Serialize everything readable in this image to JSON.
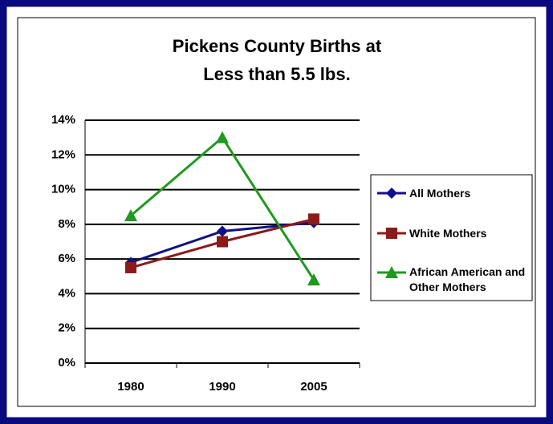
{
  "chart_data": {
    "type": "line",
    "title": "Pickens County Births at Less than 5.5 lbs.",
    "categories": [
      "1980",
      "1990",
      "2005"
    ],
    "series": [
      {
        "name": "All Mothers",
        "color": "#10108a",
        "marker": "diamond",
        "values": [
          5.8,
          7.6,
          8.1
        ]
      },
      {
        "name": "White Mothers",
        "color": "#8b1a1a",
        "marker": "square",
        "values": [
          5.5,
          7.0,
          8.3
        ]
      },
      {
        "name": "African American and Other Mothers",
        "color": "#1e9a1e",
        "marker": "triangle",
        "values": [
          8.5,
          13.0,
          4.8
        ]
      }
    ],
    "ylim": [
      0,
      14
    ],
    "yticks": [
      {
        "value": 0,
        "label": "0%"
      },
      {
        "value": 2,
        "label": "2%"
      },
      {
        "value": 4,
        "label": "4%"
      },
      {
        "value": 6,
        "label": "6%"
      },
      {
        "value": 8,
        "label": "8%"
      },
      {
        "value": 10,
        "label": "10%"
      },
      {
        "value": 12,
        "label": "12%"
      },
      {
        "value": 14,
        "label": "14%"
      }
    ],
    "grid": true,
    "legend": "right"
  }
}
